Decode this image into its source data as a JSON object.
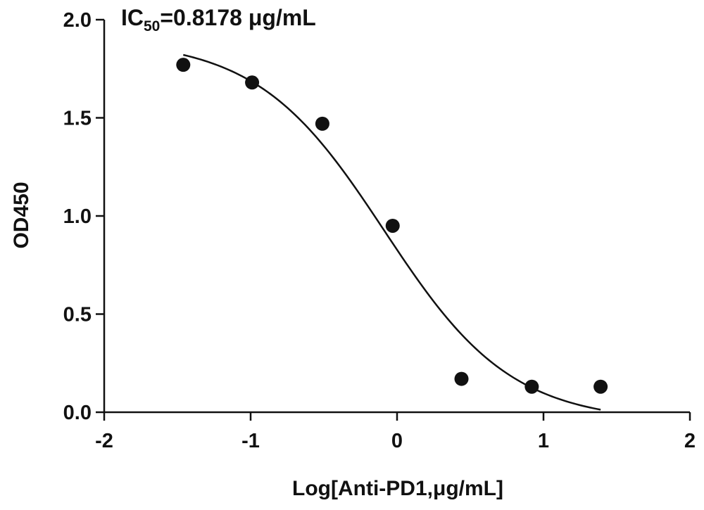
{
  "chart_data": {
    "type": "scatter",
    "title": "",
    "xlabel": "Log[Anti-PD1,μg/mL]",
    "ylabel": "OD450",
    "xlim": [
      -2,
      2
    ],
    "ylim": [
      0,
      2
    ],
    "x_ticks": [
      "-2",
      "-1",
      "0",
      "1",
      "2"
    ],
    "y_ticks": [
      "0.0",
      "0.5",
      "1.0",
      "1.5",
      "2.0"
    ],
    "x_tick_values": [
      -2,
      -1,
      0,
      1,
      2
    ],
    "y_tick_values": [
      0,
      0.5,
      1.0,
      1.5,
      2.0
    ],
    "annotation": {
      "prefix": "IC",
      "subscript": "50",
      "suffix": "=0.8178 μg/mL"
    },
    "points": [
      {
        "x": -1.46,
        "y": 1.77
      },
      {
        "x": -0.99,
        "y": 1.68
      },
      {
        "x": -0.51,
        "y": 1.47
      },
      {
        "x": -0.03,
        "y": 0.95
      },
      {
        "x": 0.44,
        "y": 0.17
      },
      {
        "x": 0.92,
        "y": 0.13
      },
      {
        "x": 1.39,
        "y": 0.13
      }
    ],
    "fit": {
      "model": "four-parameter logistic",
      "top": 1.9,
      "bottom": -0.05,
      "logIC50": -0.087,
      "hill_slope": -1.0,
      "x_range": [
        -1.46,
        1.39
      ]
    },
    "grid": false,
    "legend": "none"
  }
}
